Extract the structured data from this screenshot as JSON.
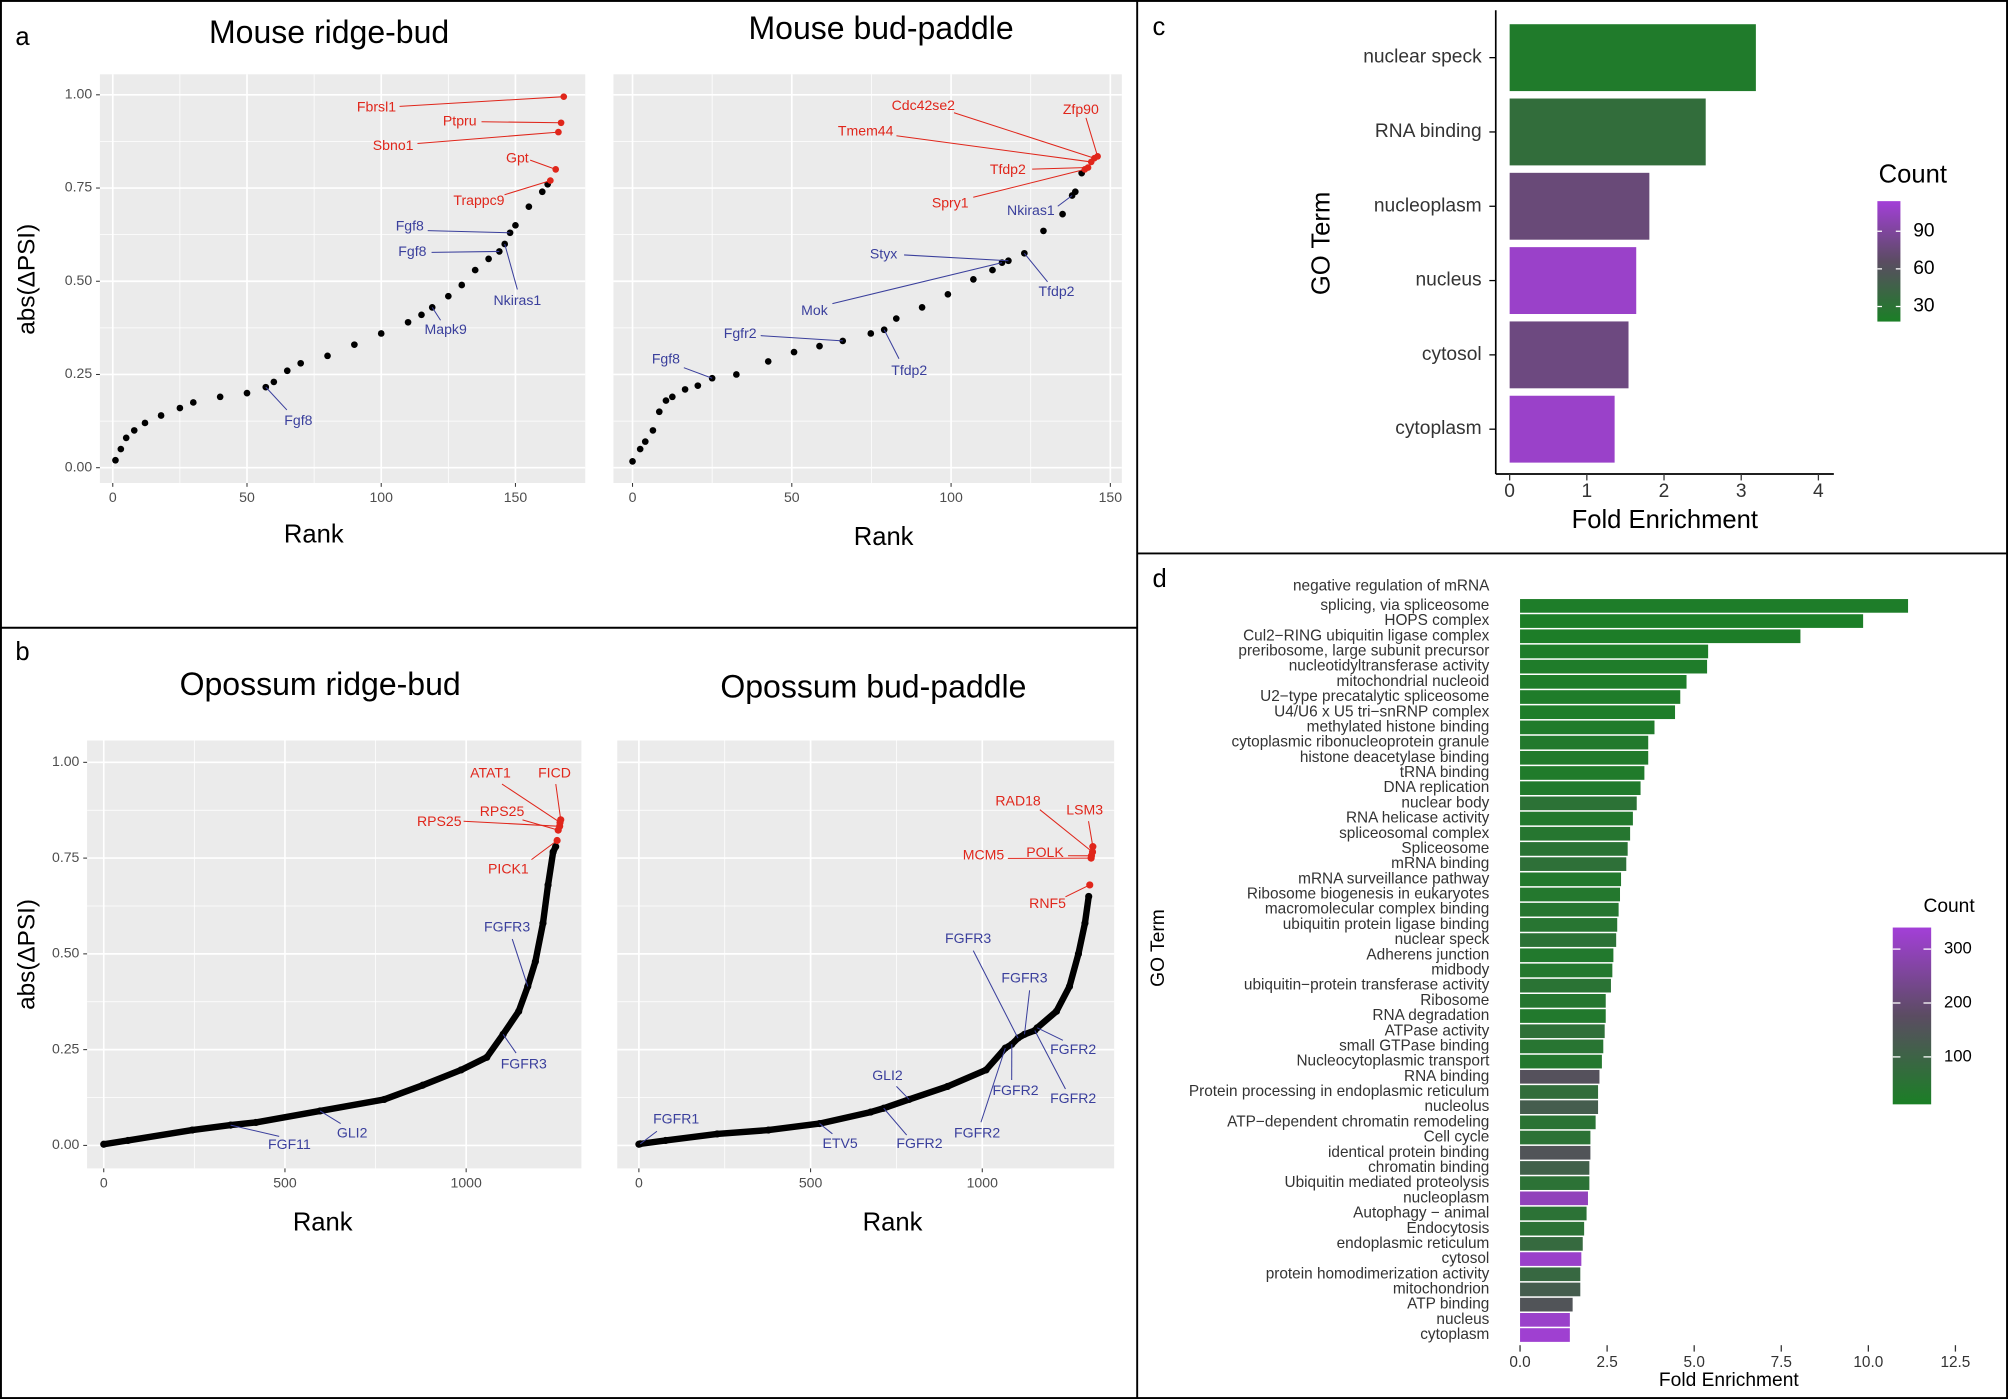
{
  "panel_labels": [
    "a",
    "b",
    "c",
    "d"
  ],
  "chart_data": [
    {
      "type": "scatter",
      "title": "Mouse ridge-bud",
      "x_label": "Rank",
      "y_label": "abs(ΔPSI)",
      "xlim": [
        -4.8,
        176
      ],
      "ylim": [
        -0.041,
        1.055
      ],
      "xticks": [
        0,
        50,
        100,
        150
      ],
      "yticks": [
        {
          "value": 0,
          "label": "0.00"
        },
        {
          "value": 0.25,
          "label": "0.25"
        },
        {
          "value": 0.5,
          "label": "0.50"
        },
        {
          "value": 0.75,
          "label": "0.75"
        },
        {
          "value": 1,
          "label": "1.00"
        }
      ],
      "series": [
        {
          "color": "#000000",
          "x": [
            1,
            3,
            5,
            8,
            12,
            18,
            25,
            30,
            40,
            50,
            57,
            60,
            65,
            70,
            80,
            90,
            100,
            110,
            115,
            119,
            125,
            130,
            135,
            140,
            144,
            146,
            148,
            150,
            155,
            160,
            162
          ],
          "y": [
            0.02,
            0.05,
            0.08,
            0.1,
            0.12,
            0.14,
            0.16,
            0.175,
            0.19,
            0.2,
            0.216,
            0.23,
            0.26,
            0.28,
            0.3,
            0.33,
            0.36,
            0.39,
            0.41,
            0.43,
            0.46,
            0.49,
            0.53,
            0.56,
            0.58,
            0.6,
            0.63,
            0.65,
            0.7,
            0.74,
            0.76
          ]
        },
        {
          "color": "#e0261b",
          "x": [
            163,
            165,
            166,
            167,
            168
          ],
          "y": [
            0.77,
            0.8,
            0.9,
            0.925,
            0.995
          ]
        }
      ],
      "annotations": [
        {
          "label": "Fbrsl1",
          "x": 168,
          "y": 0.995,
          "color": "#e0261b"
        },
        {
          "label": "Ptpru",
          "x": 167,
          "y": 0.925,
          "color": "#e0261b"
        },
        {
          "label": "Sbno1",
          "x": 166,
          "y": 0.9,
          "color": "#e0261b"
        },
        {
          "label": "Gpt",
          "x": 165,
          "y": 0.8,
          "color": "#e0261b"
        },
        {
          "label": "Trappc9",
          "x": 163,
          "y": 0.77,
          "color": "#e0261b"
        },
        {
          "label": "Fgf8",
          "x": 148,
          "y": 0.63,
          "color": "#3a3f9c"
        },
        {
          "label": "Fgf8",
          "x": 144,
          "y": 0.58,
          "color": "#3a3f9c"
        },
        {
          "label": "Nkiras1",
          "x": 146,
          "y": 0.6,
          "color": "#3a3f9c"
        },
        {
          "label": "Mapk9",
          "x": 119,
          "y": 0.43,
          "color": "#3a3f9c"
        },
        {
          "label": "Fgf8",
          "x": 57,
          "y": 0.216,
          "color": "#3a3f9c"
        }
      ]
    },
    {
      "type": "scatter",
      "title": "Mouse bud-paddle",
      "x_label": "Rank",
      "y_tick_labels": false,
      "xlim": [
        -6,
        153.6
      ],
      "ylim": [
        -0.041,
        1.055
      ],
      "xticks": [
        0,
        50,
        100,
        150
      ],
      "yticks": [
        0,
        0.25,
        0.5,
        0.75,
        1
      ],
      "series": [
        {
          "color": "#000000",
          "x": [
            0,
            2.4,
            4,
            6.4,
            8.4,
            10.5,
            12.5,
            16.5,
            20.5,
            25,
            32.6,
            42.6,
            50.7,
            58.7,
            66,
            74.8,
            79,
            82.8,
            90.9,
            99,
            107,
            113,
            116,
            118,
            123,
            129,
            135,
            138,
            139,
            141
          ],
          "y": [
            0.017,
            0.05,
            0.07,
            0.1,
            0.15,
            0.18,
            0.19,
            0.21,
            0.22,
            0.24,
            0.25,
            0.285,
            0.31,
            0.326,
            0.34,
            0.36,
            0.37,
            0.4,
            0.43,
            0.465,
            0.505,
            0.53,
            0.55,
            0.555,
            0.575,
            0.635,
            0.68,
            0.73,
            0.74,
            0.79
          ]
        },
        {
          "color": "#e0261b",
          "x": [
            142,
            143,
            144,
            145,
            146
          ],
          "y": [
            0.8,
            0.805,
            0.82,
            0.83,
            0.835
          ]
        }
      ],
      "annotations": [
        {
          "label": "Cdc42se2",
          "x": 145,
          "y": 0.83,
          "color": "#e0261b"
        },
        {
          "label": "Zfp90",
          "x": 146,
          "y": 0.835,
          "color": "#e0261b"
        },
        {
          "label": "Tmem44",
          "x": 144,
          "y": 0.82,
          "color": "#e0261b"
        },
        {
          "label": "Tfdp2",
          "x": 143,
          "y": 0.805,
          "color": "#e0261b"
        },
        {
          "label": "Spry1",
          "x": 142,
          "y": 0.8,
          "color": "#e0261b"
        },
        {
          "label": "Nkiras1",
          "x": 138,
          "y": 0.73,
          "color": "#3a3f9c"
        },
        {
          "label": "Styx",
          "x": 118,
          "y": 0.555,
          "color": "#3a3f9c"
        },
        {
          "label": "Tfdp2",
          "x": 123,
          "y": 0.575,
          "color": "#3a3f9c"
        },
        {
          "label": "Mok",
          "x": 116,
          "y": 0.55,
          "color": "#3a3f9c"
        },
        {
          "label": "Fgfr2",
          "x": 66,
          "y": 0.34,
          "color": "#3a3f9c"
        },
        {
          "label": "Tfdp2",
          "x": 79,
          "y": 0.37,
          "color": "#3a3f9c"
        },
        {
          "label": "Fgf8",
          "x": 25,
          "y": 0.24,
          "color": "#3a3f9c"
        }
      ]
    },
    {
      "type": "scatter",
      "title": "Opossum ridge-bud",
      "x_label": "Rank",
      "y_label": "abs(ΔPSI)",
      "xlim": [
        -46,
        1318
      ],
      "ylim": [
        -0.06,
        1.057
      ],
      "xticks": [
        0,
        500,
        1000
      ],
      "yticks": [
        {
          "value": 0,
          "label": "0.00"
        },
        {
          "value": 0.25,
          "label": "0.25"
        },
        {
          "value": 0.5,
          "label": "0.50"
        },
        {
          "value": 0.75,
          "label": "0.75"
        },
        {
          "value": 1,
          "label": "1.00"
        }
      ],
      "series": [
        {
          "color": "#000000",
          "x": [
            0,
            67,
            244,
            350,
            420,
            597,
            774,
            880,
            986,
            1057,
            1102,
            1145,
            1170,
            1191,
            1212,
            1226,
            1240,
            1247
          ],
          "y": [
            0.003,
            0.013,
            0.04,
            0.053,
            0.06,
            0.09,
            0.12,
            0.157,
            0.197,
            0.23,
            0.29,
            0.35,
            0.415,
            0.48,
            0.58,
            0.68,
            0.766,
            0.78
          ]
        },
        {
          "color": "#e0261b",
          "x": [
            1251,
            1254,
            1258,
            1259,
            1261
          ],
          "y": [
            0.796,
            0.823,
            0.833,
            0.843,
            0.85
          ]
        }
      ],
      "annotations": [
        {
          "label": "ATAT1",
          "x": 1259,
          "y": 0.843,
          "color": "#e0261b"
        },
        {
          "label": "FICD",
          "x": 1261,
          "y": 0.85,
          "color": "#e0261b"
        },
        {
          "label": "RPS25",
          "x": 1254,
          "y": 0.823,
          "color": "#e0261b"
        },
        {
          "label": "RPS25",
          "x": 1258,
          "y": 0.833,
          "color": "#e0261b"
        },
        {
          "label": "PICK1",
          "x": 1251,
          "y": 0.796,
          "color": "#e0261b"
        },
        {
          "label": "FGFR3",
          "x": 1170,
          "y": 0.415,
          "color": "#3a3f9c"
        },
        {
          "label": "FGFR3",
          "x": 1102,
          "y": 0.29,
          "color": "#3a3f9c"
        },
        {
          "label": "FGF11",
          "x": 350,
          "y": 0.053,
          "color": "#3a3f9c"
        },
        {
          "label": "GLI2",
          "x": 597,
          "y": 0.09,
          "color": "#3a3f9c"
        }
      ]
    },
    {
      "type": "scatter",
      "title": "Opossum bud-paddle",
      "x_label": "Rank",
      "y_tick_labels": false,
      "xlim": [
        -63,
        1384
      ],
      "ylim": [
        -0.06,
        1.057
      ],
      "xticks": [
        0,
        500,
        1000
      ],
      "yticks": [
        0,
        0.25,
        0.5,
        0.75,
        1
      ],
      "series": [
        {
          "color": "#000000",
          "x": [
            0,
            4,
            78,
            228,
            377,
            526,
            675,
            713,
            787,
            899,
            1011,
            1067,
            1086,
            1104,
            1123,
            1153,
            1160,
            1216,
            1254,
            1280,
            1299,
            1310
          ],
          "y": [
            0.003,
            0.004,
            0.013,
            0.03,
            0.04,
            0.057,
            0.087,
            0.097,
            0.12,
            0.154,
            0.197,
            0.254,
            0.264,
            0.28,
            0.29,
            0.3,
            0.307,
            0.35,
            0.415,
            0.5,
            0.58,
            0.65
          ]
        },
        {
          "color": "#e0261b",
          "x": [
            1313,
            1317,
            1318,
            1321,
            1322
          ],
          "y": [
            0.68,
            0.75,
            0.756,
            0.766,
            0.78
          ]
        }
      ],
      "annotations": [
        {
          "label": "RAD18",
          "x": 1321,
          "y": 0.766,
          "color": "#e0261b"
        },
        {
          "label": "LSM3",
          "x": 1322,
          "y": 0.78,
          "color": "#e0261b"
        },
        {
          "label": "POLK",
          "x": 1318,
          "y": 0.756,
          "color": "#e0261b"
        },
        {
          "label": "MCM5",
          "x": 1317,
          "y": 0.75,
          "color": "#e0261b"
        },
        {
          "label": "RNF5",
          "x": 1313,
          "y": 0.68,
          "color": "#e0261b"
        },
        {
          "label": "FGFR3",
          "x": 1104,
          "y": 0.28,
          "color": "#3a3f9c"
        },
        {
          "label": "FGFR3",
          "x": 1123,
          "y": 0.29,
          "color": "#3a3f9c"
        },
        {
          "label": "FGFR2",
          "x": 1160,
          "y": 0.307,
          "color": "#3a3f9c"
        },
        {
          "label": "FGFR2",
          "x": 1153,
          "y": 0.3,
          "color": "#3a3f9c"
        },
        {
          "label": "FGFR2",
          "x": 1086,
          "y": 0.264,
          "color": "#3a3f9c"
        },
        {
          "label": "FGFR2",
          "x": 1067,
          "y": 0.254,
          "color": "#3a3f9c"
        },
        {
          "label": "GLI2",
          "x": 787,
          "y": 0.12,
          "color": "#3a3f9c"
        },
        {
          "label": "FGFR2",
          "x": 713,
          "y": 0.097,
          "color": "#3a3f9c"
        },
        {
          "label": "ETV5",
          "x": 526,
          "y": 0.057,
          "color": "#3a3f9c"
        },
        {
          "label": "FGFR1",
          "x": 4,
          "y": 0.004,
          "color": "#3a3f9c"
        }
      ]
    },
    {
      "type": "barh",
      "x_label": "Fold Enrichment",
      "y_label": "GO Term",
      "legend_title": "Count",
      "categories": [
        "nuclear speck",
        "RNA binding",
        "nucleoplasm",
        "nucleus",
        "cytosol",
        "cytoplasm"
      ],
      "values": [
        3.19,
        2.54,
        1.81,
        1.64,
        1.54,
        1.36
      ],
      "counts": [
        22,
        35,
        75,
        108,
        78,
        108
      ],
      "clim": [
        18,
        114
      ],
      "cticks": [
        30,
        60,
        90
      ],
      "colors": [
        "#1b7f26",
        "#5b4c62",
        "#a33fd8"
      ],
      "xlim": [
        -0.18,
        4.2
      ],
      "xticks": [
        0,
        1,
        2,
        3,
        4
      ]
    },
    {
      "type": "barh",
      "x_label": "Fold Enrichment",
      "y_label": "GO Term",
      "legend_title": "Count",
      "categories": [
        "negative regulation of mRNA\nsplicing, via spliceosome",
        "HOPS complex",
        "Cul2−RING ubiquitin ligase complex",
        "preribosome, large subunit precursor",
        "nucleotidyltransferase activity",
        "mitochondrial nucleoid",
        "U2−type precatalytic spliceosome",
        "U4/U6 x U5 tri−snRNP complex",
        "methylated histone binding",
        "cytoplasmic ribonucleoprotein granule",
        "histone deacetylase binding",
        "tRNA binding",
        "DNA replication",
        "nuclear body",
        "RNA helicase activity",
        "spliceosomal complex",
        "Spliceosome",
        "mRNA binding",
        "mRNA surveillance pathway",
        "Ribosome biogenesis in eukaryotes",
        "macromolecular complex binding",
        "ubiquitin protein ligase binding",
        "nuclear speck",
        "Adherens junction",
        "midbody",
        "ubiquitin−protein transferase activity",
        "Ribosome",
        "RNA degradation",
        "ATPase activity",
        "small GTPase binding",
        "Nucleocytoplasmic transport",
        "RNA binding",
        "Protein processing in endoplasmic reticulum",
        "nucleolus",
        "ATP−dependent chromatin remodeling",
        "Cell cycle",
        "identical protein binding",
        "chromatin binding",
        "Ubiquitin mediated proteolysis",
        "nucleoplasm",
        "Autophagy − animal",
        "Endocytosis",
        "endoplasmic reticulum",
        "cytosol",
        "protein homodimerization activity",
        "mitochondrion",
        "ATP binding",
        "nucleus",
        "cytoplasm"
      ],
      "values": [
        11.14,
        9.85,
        8.05,
        5.4,
        5.37,
        4.78,
        4.6,
        4.45,
        3.86,
        3.68,
        3.68,
        3.57,
        3.46,
        3.35,
        3.24,
        3.16,
        3.09,
        3.05,
        2.9,
        2.87,
        2.83,
        2.79,
        2.76,
        2.68,
        2.65,
        2.61,
        2.46,
        2.46,
        2.43,
        2.39,
        2.35,
        2.28,
        2.24,
        2.24,
        2.17,
        2.02,
        2.02,
        1.99,
        1.99,
        1.95,
        1.91,
        1.84,
        1.8,
        1.76,
        1.73,
        1.73,
        1.51,
        1.43,
        1.43
      ],
      "counts": [
        20,
        15,
        18,
        20,
        22,
        20,
        22,
        20,
        25,
        30,
        28,
        25,
        28,
        55,
        30,
        40,
        50,
        60,
        30,
        35,
        40,
        45,
        55,
        30,
        35,
        50,
        40,
        30,
        60,
        45,
        35,
        160,
        70,
        120,
        50,
        55,
        150,
        110,
        55,
        300,
        55,
        55,
        80,
        320,
        85,
        120,
        150,
        320,
        330
      ],
      "clim": [
        12,
        340
      ],
      "cticks": [
        100,
        200,
        300
      ],
      "colors": [
        "#1b7f26",
        "#5b4c62",
        "#a33fd8"
      ],
      "xlim": [
        -0.44,
        12.98
      ],
      "xticks": [
        {
          "value": 0,
          "label": "0.0"
        },
        {
          "value": 2.5,
          "label": "2.5"
        },
        {
          "value": 5,
          "label": "5.0"
        },
        {
          "value": 7.5,
          "label": "7.5"
        },
        {
          "value": 10,
          "label": "10.0"
        },
        {
          "value": 12.5,
          "label": "12.5"
        }
      ]
    }
  ]
}
